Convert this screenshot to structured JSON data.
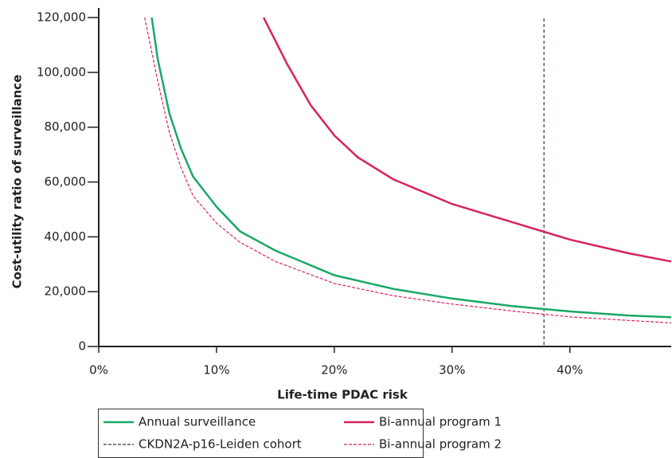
{
  "chart_data": {
    "type": "line",
    "x_label": "Life-time PDAC risk",
    "y_label": "Cost-utility ratio of surveillance",
    "xlim": [
      0,
      48.6
    ],
    "ylim": [
      0,
      123500
    ],
    "xticks": [
      {
        "value": 0,
        "label": "0%"
      },
      {
        "value": 10,
        "label": "10%"
      },
      {
        "value": 20,
        "label": "20%"
      },
      {
        "value": 30,
        "label": "30%"
      },
      {
        "value": 40,
        "label": "40%"
      }
    ],
    "yticks": [
      0,
      {
        "value": 20000,
        "label": "20,000"
      },
      {
        "value": 40000,
        "label": "40,000"
      },
      {
        "value": 60000,
        "label": "60,000"
      },
      {
        "value": 80000,
        "label": "80,000"
      },
      {
        "value": 100000,
        "label": "100,000"
      },
      {
        "value": 120000,
        "label": "120,000"
      }
    ],
    "grid": false,
    "series": [
      {
        "name": "Annual surveillance",
        "color": "#1aa865",
        "dashed": false,
        "x": [
          4.5,
          5,
          6,
          7,
          8,
          10,
          12,
          15,
          20,
          25,
          30,
          35,
          40,
          45,
          48.6
        ],
        "values": [
          120000,
          105000,
          85000,
          72000,
          62000,
          51000,
          42000,
          35000,
          26000,
          21000,
          17500,
          14800,
          12800,
          11300,
          10700
        ]
      },
      {
        "name": "Bi-annual program 1",
        "color": "#d6245f",
        "dashed": false,
        "x": [
          14,
          16,
          18,
          20,
          22,
          25,
          30,
          35,
          37.7,
          40,
          45,
          48.6
        ],
        "values": [
          120000,
          103000,
          88000,
          77000,
          69000,
          61000,
          52000,
          45500,
          42000,
          39000,
          34000,
          31000
        ]
      },
      {
        "name": "Bi-annual program 2",
        "color": "#d6245f",
        "dashed": true,
        "x": [
          3.9,
          5,
          6,
          7,
          8,
          10,
          12,
          15,
          20,
          25,
          30,
          35,
          40,
          45,
          48.6
        ],
        "values": [
          120000,
          97000,
          78000,
          65000,
          55000,
          45000,
          38000,
          31000,
          23000,
          18500,
          15500,
          13000,
          10800,
          9500,
          8600
        ]
      }
    ],
    "reference_line": {
      "name": "CKDN2A-p16-Leiden cohort",
      "x": 37.8,
      "color": "#2d3a4a"
    }
  }
}
